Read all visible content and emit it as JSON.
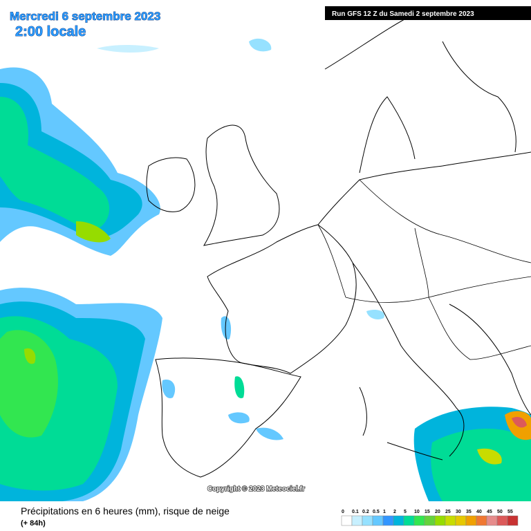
{
  "header": {
    "date": "Mercredi 6 septembre 2023",
    "time": "2:00 locale",
    "run": "Run GFS 12 Z du Samedi 2 septembre 2023"
  },
  "copyright": "Copyright © 2023 Meteociel.fr",
  "caption": {
    "title": "Précipitations en 6 heures (mm), risque de neige",
    "lead": "(+ 84h)"
  },
  "legend": {
    "levels": [
      {
        "label": "0",
        "color": "#ffffff"
      },
      {
        "label": "0.1",
        "color": "#c8f0ff"
      },
      {
        "label": "0.2",
        "color": "#96e1ff"
      },
      {
        "label": "0.5",
        "color": "#64c8ff"
      },
      {
        "label": "1",
        "color": "#3296ff"
      },
      {
        "label": "2",
        "color": "#00b4dc"
      },
      {
        "label": "5",
        "color": "#00dc96"
      },
      {
        "label": "10",
        "color": "#32e650"
      },
      {
        "label": "15",
        "color": "#64d23c"
      },
      {
        "label": "20",
        "color": "#96dc00"
      },
      {
        "label": "25",
        "color": "#c8dc00"
      },
      {
        "label": "30",
        "color": "#e6c800"
      },
      {
        "label": "35",
        "color": "#f0a000"
      },
      {
        "label": "40",
        "color": "#f07832"
      },
      {
        "label": "45",
        "color": "#e68c8c"
      },
      {
        "label": "50",
        "color": "#dc5a5a"
      },
      {
        "label": "55",
        "color": "#c83232"
      }
    ]
  }
}
